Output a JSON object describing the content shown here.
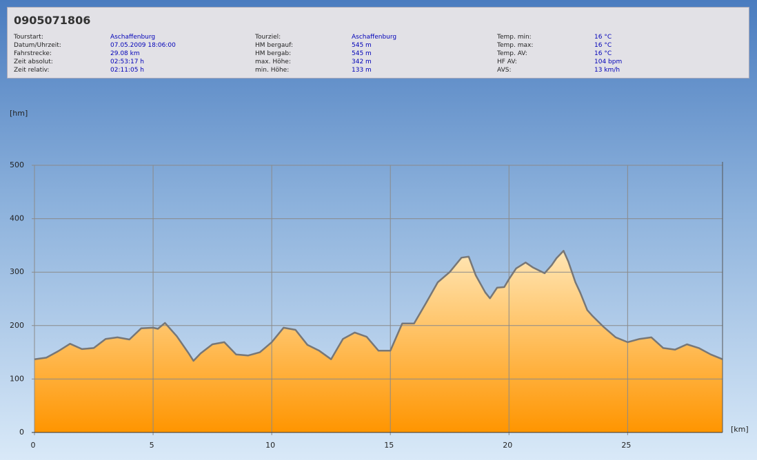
{
  "info": {
    "title": "0905071806",
    "columns": [
      [
        [
          "Tourstart:",
          "Aschaffenburg"
        ],
        [
          "Datum/Uhrzeit:",
          "07.05.2009 18:06:00"
        ],
        [
          "Fahrstrecke:",
          "29.08 km"
        ],
        [
          "Zeit absolut:",
          "02:53:17 h"
        ],
        [
          "Zeit relativ:",
          "02:11:05 h"
        ]
      ],
      [
        [
          "Tourziel:",
          "Aschaffenburg"
        ],
        [
          "HM bergauf:",
          "545 m"
        ],
        [
          "HM bergab:",
          "545 m"
        ],
        [
          "max. Höhe:",
          "342 m"
        ],
        [
          "min. Höhe:",
          "133 m"
        ]
      ],
      [
        [
          "Temp. min:",
          "16 °C"
        ],
        [
          "Temp. max:",
          "16 °C"
        ],
        [
          "Temp. AV:",
          "16 °C"
        ],
        [
          "HF AV:",
          "104 bpm"
        ],
        [
          "AVS:",
          "13 km/h"
        ]
      ]
    ]
  },
  "chart_data": {
    "type": "area",
    "y_label": "[hm]",
    "x_label": "[km]",
    "x": [
      0,
      0.5,
      1,
      1.5,
      2,
      2.5,
      3,
      3.5,
      4,
      4.5,
      5,
      5.2,
      5.5,
      6,
      6.5,
      6.7,
      7,
      7.5,
      8,
      8.5,
      9,
      9.5,
      10,
      10.5,
      11,
      11.5,
      12,
      12.5,
      13,
      13.5,
      14,
      14.5,
      15,
      15.5,
      16,
      16.5,
      17,
      17.5,
      18,
      18.3,
      18.6,
      19,
      19.2,
      19.5,
      19.8,
      20,
      20.3,
      20.7,
      21,
      21.5,
      21.8,
      22,
      22.3,
      22.5,
      22.8,
      23,
      23.3,
      23.5,
      24,
      24.5,
      25,
      25.5,
      26,
      26.5,
      27,
      27.5,
      28,
      28.5,
      29
    ],
    "values": [
      137,
      140,
      152,
      166,
      156,
      158,
      175,
      178,
      174,
      195,
      196,
      194,
      205,
      180,
      148,
      134,
      148,
      165,
      169,
      146,
      144,
      150,
      169,
      196,
      192,
      164,
      153,
      137,
      175,
      187,
      179,
      153,
      153,
      204,
      204,
      242,
      281,
      300,
      327,
      329,
      294,
      262,
      251,
      271,
      272,
      287,
      307,
      318,
      309,
      298,
      313,
      326,
      340,
      320,
      281,
      262,
      229,
      219,
      197,
      178,
      169,
      175,
      178,
      158,
      155,
      165,
      158,
      146,
      137
    ],
    "line_color": "#777777",
    "fill_top": "#ffe6b5",
    "fill_bottom": "#ff9500",
    "xlim": [
      0,
      29
    ],
    "ylim": [
      0,
      500
    ],
    "xticks": [
      0,
      5,
      10,
      15,
      20,
      25
    ],
    "yticks": [
      0,
      100,
      200,
      300,
      400,
      500
    ],
    "grid": true
  }
}
